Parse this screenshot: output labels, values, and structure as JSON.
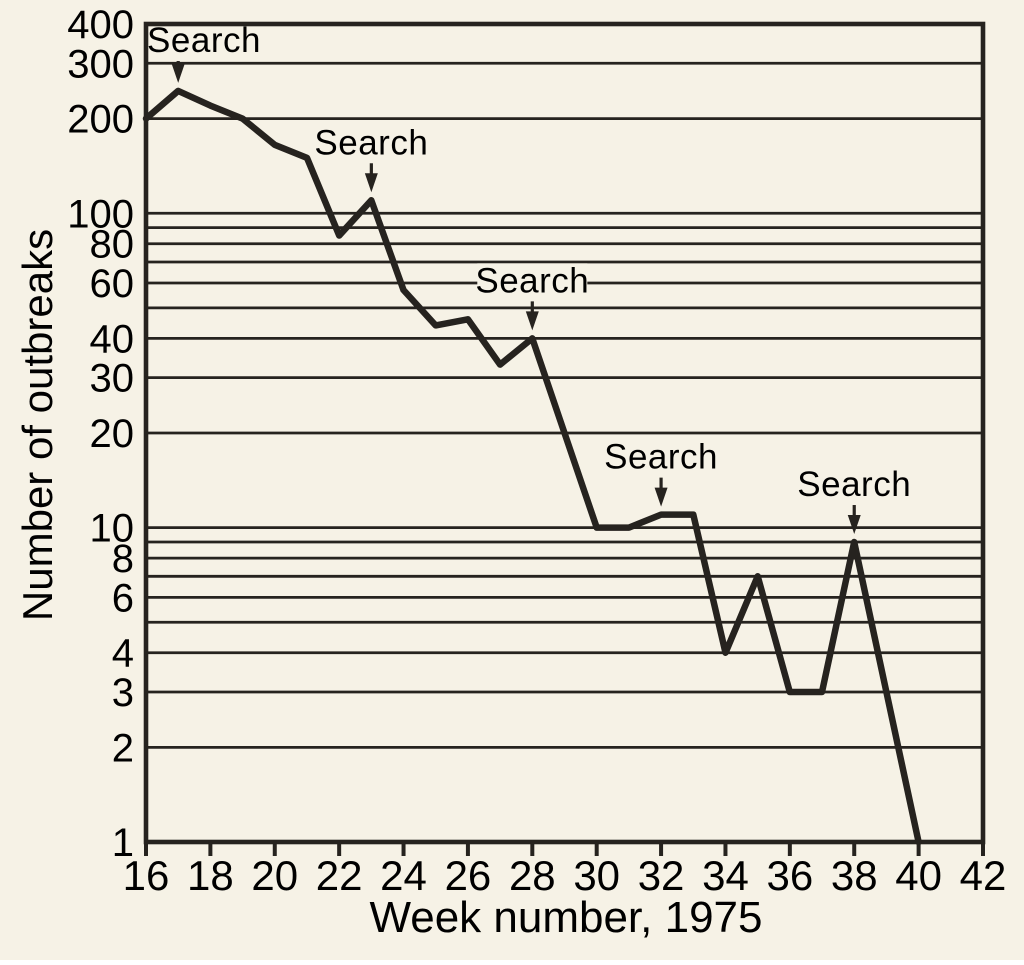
{
  "page": {
    "paper_color": "#f6f2e6",
    "ink_color": "#26231f"
  },
  "chart_data": {
    "type": "line",
    "title": "",
    "xlabel": "Week number, 1975",
    "ylabel": "Number of outbreaks",
    "x_scale": "linear",
    "y_scale": "log",
    "xlim": [
      16,
      42
    ],
    "ylim": [
      1,
      400
    ],
    "grid": "horizontal-only",
    "x_ticks": [
      16,
      18,
      20,
      22,
      24,
      26,
      28,
      30,
      32,
      34,
      36,
      38,
      40,
      42
    ],
    "y_gridlines": [
      1,
      2,
      3,
      4,
      5,
      6,
      7,
      8,
      9,
      10,
      20,
      30,
      40,
      50,
      60,
      70,
      80,
      90,
      100,
      200,
      300,
      400
    ],
    "y_labeled_ticks": [
      400,
      300,
      200,
      100,
      80,
      60,
      40,
      30,
      20,
      10,
      8,
      6,
      4,
      3,
      2,
      1
    ],
    "series": [
      {
        "name": "outbreaks",
        "x": [
          16,
          17,
          18,
          19,
          20,
          21,
          22,
          23,
          24,
          25,
          26,
          27,
          28,
          29,
          30,
          31,
          32,
          33,
          34,
          35,
          36,
          37,
          38,
          39,
          40
        ],
        "y": [
          200,
          245,
          220,
          200,
          165,
          150,
          85,
          110,
          57,
          44,
          46,
          33,
          40,
          20,
          10,
          10,
          11,
          11,
          4,
          7,
          3,
          3,
          9,
          3,
          1
        ]
      }
    ],
    "annotations": [
      {
        "label": "Search",
        "week": 17,
        "value": 245
      },
      {
        "label": "Search",
        "week": 23,
        "value": 110
      },
      {
        "label": "Search",
        "week": 28,
        "value": 40
      },
      {
        "label": "Search",
        "week": 32,
        "value": 11
      },
      {
        "label": "Search",
        "week": 38,
        "value": 9
      }
    ],
    "legend": "none"
  }
}
